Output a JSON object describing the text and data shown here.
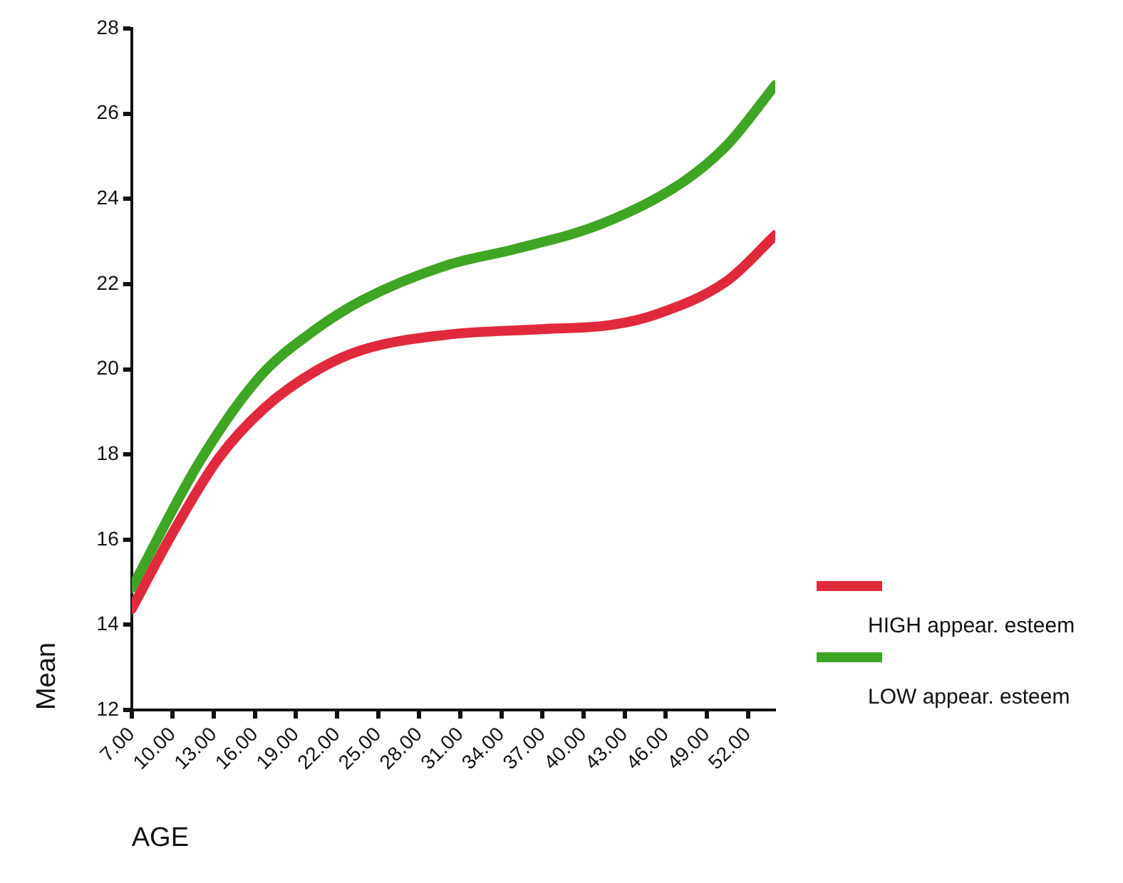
{
  "chart_data": {
    "type": "line",
    "xlabel": "AGE",
    "ylabel": "Mean",
    "xlim": [
      7,
      54
    ],
    "xticks": [
      {
        "value": 7,
        "label": "7.00"
      },
      {
        "value": 10,
        "label": "10.00"
      },
      {
        "value": 13,
        "label": "13.00"
      },
      {
        "value": 16,
        "label": "16.00"
      },
      {
        "value": 19,
        "label": "19.00"
      },
      {
        "value": 22,
        "label": "22.00"
      },
      {
        "value": 25,
        "label": "25.00"
      },
      {
        "value": 28,
        "label": "28.00"
      },
      {
        "value": 31,
        "label": "31.00"
      },
      {
        "value": 34,
        "label": "34.00"
      },
      {
        "value": 37,
        "label": "37.00"
      },
      {
        "value": 40,
        "label": "40.00"
      },
      {
        "value": 43,
        "label": "43.00"
      },
      {
        "value": 46,
        "label": "46.00"
      },
      {
        "value": 49,
        "label": "49.00"
      },
      {
        "value": 52,
        "label": "52.00"
      }
    ],
    "ylim": [
      12,
      28
    ],
    "yticks": [
      12,
      14,
      16,
      18,
      20,
      22,
      24,
      26,
      28
    ],
    "grid": false,
    "legend": "right",
    "marker": "none",
    "line_style": "solid",
    "series": [
      {
        "name": "HIGH appear. esteem",
        "color": "#e02a3c",
        "x": [
          7,
          10,
          13.3,
          16.7,
          20.5,
          23.9,
          30,
          36.9,
          42,
          45.4,
          50.5,
          54
        ],
        "values": [
          14.37,
          16.16,
          17.89,
          19.09,
          19.97,
          20.46,
          20.81,
          20.94,
          21.04,
          21.3,
          22.08,
          23.15
        ]
      },
      {
        "name": "LOW appear. esteem",
        "color": "#3fa524",
        "x": [
          7,
          12,
          16.4,
          20.2,
          23.9,
          30,
          35.1,
          41.3,
          47.1,
          50.5,
          54
        ],
        "values": [
          14.86,
          17.85,
          19.84,
          20.88,
          21.63,
          22.44,
          22.83,
          23.41,
          24.36,
          25.27,
          26.67
        ]
      }
    ]
  }
}
